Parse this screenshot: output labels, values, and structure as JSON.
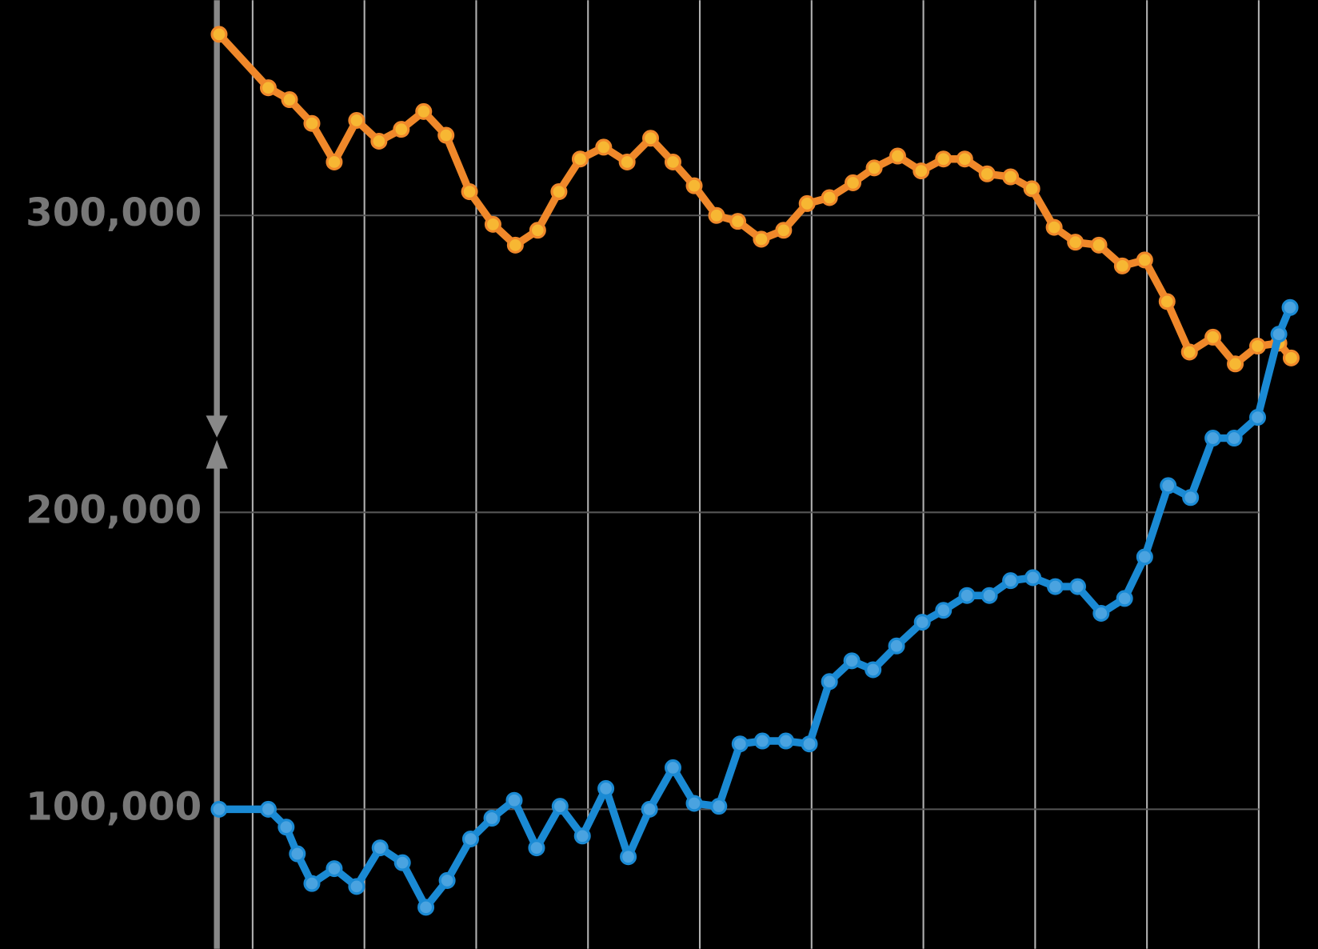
{
  "chart_data": {
    "type": "line",
    "xlim": [
      -0.32,
      9.53
    ],
    "xticks": [
      0,
      1,
      2,
      3,
      4,
      5,
      6,
      7,
      8,
      9
    ],
    "ylim": [
      53000,
      372500
    ],
    "yticks": [
      {
        "value": 100000,
        "label": "100,000"
      },
      {
        "value": 200000,
        "label": "200,000"
      },
      {
        "value": 300000,
        "label": "300,000"
      }
    ],
    "grid": true,
    "series": [
      {
        "color": "#f0882a",
        "marker_color": "#f7b733",
        "x": [
          -0.3,
          0.14,
          0.33,
          0.53,
          0.73,
          0.93,
          1.13,
          1.33,
          1.53,
          1.73,
          1.94,
          2.15,
          2.35,
          2.55,
          2.74,
          2.93,
          3.14,
          3.35,
          3.56,
          3.76,
          3.95,
          4.15,
          4.34,
          4.55,
          4.75,
          4.96,
          5.16,
          5.37,
          5.56,
          5.77,
          5.98,
          6.18,
          6.37,
          6.57,
          6.78,
          6.97,
          7.17,
          7.36,
          7.57,
          7.78,
          7.98,
          8.18,
          8.38,
          8.59,
          8.79,
          8.99,
          9.18,
          9.29
        ],
        "values": [
          361000,
          343000,
          339000,
          331000,
          318000,
          332000,
          325000,
          329000,
          335000,
          327000,
          308000,
          297000,
          290000,
          295000,
          308000,
          319000,
          323000,
          318000,
          326000,
          318000,
          310000,
          300000,
          298000,
          292000,
          295000,
          304000,
          306000,
          311000,
          316000,
          320000,
          315000,
          319000,
          319000,
          314000,
          313000,
          309000,
          296000,
          291000,
          290000,
          283000,
          285000,
          271000,
          254000,
          259000,
          250000,
          256000,
          257000,
          252000
        ]
      },
      {
        "color": "#1a8ad4",
        "marker_color": "#4aa3e0",
        "x": [
          -0.3,
          0.14,
          0.3,
          0.4,
          0.53,
          0.73,
          0.93,
          1.14,
          1.34,
          1.55,
          1.74,
          1.95,
          2.14,
          2.34,
          2.54,
          2.75,
          2.95,
          3.16,
          3.36,
          3.55,
          3.76,
          3.95,
          4.17,
          4.36,
          4.56,
          4.77,
          4.98,
          5.16,
          5.36,
          5.55,
          5.76,
          5.99,
          6.18,
          6.39,
          6.59,
          6.78,
          6.98,
          7.18,
          7.38,
          7.59,
          7.8,
          7.98,
          8.19,
          8.39,
          8.59,
          8.78,
          8.99,
          9.18,
          9.28
        ],
        "values": [
          100000,
          100000,
          94000,
          85000,
          75000,
          80000,
          74000,
          87000,
          82000,
          67000,
          76000,
          90000,
          97000,
          103000,
          87000,
          101000,
          91000,
          107000,
          84000,
          100000,
          114000,
          102000,
          101000,
          122000,
          123000,
          123000,
          122000,
          143000,
          150000,
          147000,
          155000,
          163000,
          167000,
          172000,
          172000,
          177000,
          178000,
          175000,
          175000,
          166000,
          171000,
          185000,
          209000,
          205000,
          225000,
          225000,
          232000,
          260000,
          269000
        ]
      }
    ]
  }
}
